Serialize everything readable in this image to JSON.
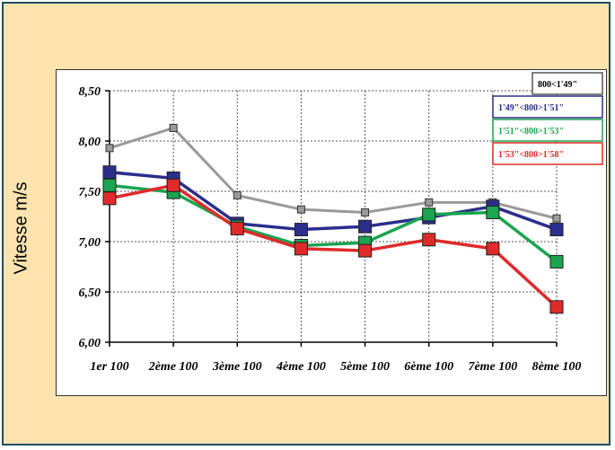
{
  "chart_data": {
    "type": "line",
    "title": "",
    "xlabel": "",
    "ylabel": "Vitesse m/s",
    "categories": [
      "1er 100",
      "2ème 100",
      "3ème 100",
      "4ème 100",
      "5ème 100",
      "6ème 100",
      "7ème 100",
      "8ème 100"
    ],
    "ylim": [
      6.0,
      8.5
    ],
    "yticks": [
      "6,00",
      "6,50",
      "7,00",
      "7,50",
      "8,00",
      "8,50"
    ],
    "grid": true,
    "legend_position": "top-right",
    "series": [
      {
        "name": "800<1'49\"",
        "color": "#9a9a9a",
        "values": [
          7.93,
          8.13,
          7.46,
          7.32,
          7.29,
          7.39,
          7.39,
          7.23
        ]
      },
      {
        "name": "1'49\"<800>1'51\"",
        "color": "#2b2e8c",
        "values": [
          7.69,
          7.63,
          7.18,
          7.12,
          7.15,
          7.24,
          7.35,
          7.12
        ]
      },
      {
        "name": "1'51\"<800>1'53\"",
        "color": "#1aa550",
        "values": [
          7.56,
          7.49,
          7.15,
          6.96,
          6.99,
          7.27,
          7.29,
          6.8
        ]
      },
      {
        "name": "1'53\"<800>1'58\"",
        "color": "#e02a2a",
        "values": [
          7.43,
          7.56,
          7.13,
          6.93,
          6.91,
          7.02,
          6.93,
          6.35
        ]
      }
    ]
  }
}
